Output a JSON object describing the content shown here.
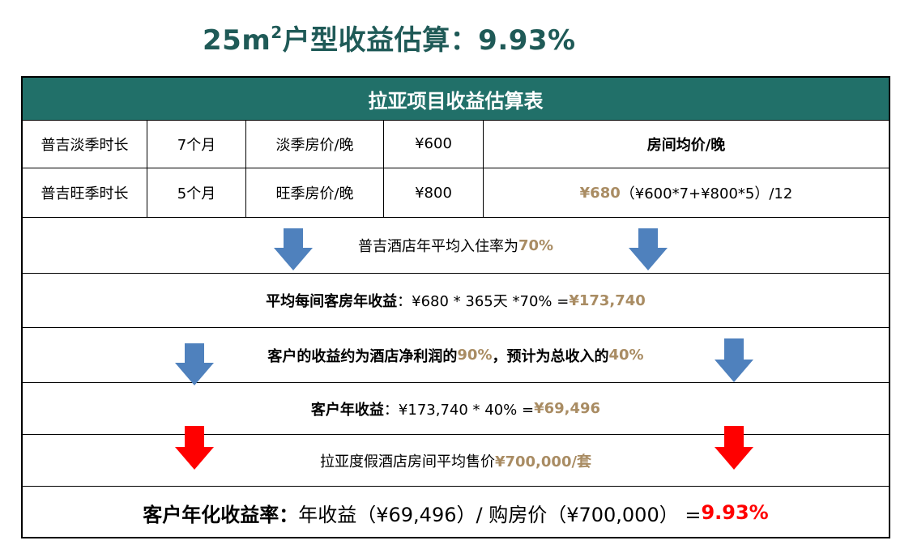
{
  "title": {
    "prefix": "25m",
    "sup": "2",
    "suffix": "户型收益估算：9.93%"
  },
  "table": {
    "header": "拉亚项目收益估算表",
    "row1": {
      "c1": "普吉淡季时长",
      "c2": "7个月",
      "c3": "淡季房价/晚",
      "c4": "¥600",
      "c5": "房间均价/晚"
    },
    "row2": {
      "c1": "普吉旺季时长",
      "c2": "5个月",
      "c3": "旺季房价/晚",
      "c4": "¥800",
      "c5_value": "¥680",
      "c5_formula": "（¥600*7+¥800*5）/12"
    },
    "row3": {
      "text": "普吉酒店年平均入住率为",
      "value": "70%"
    },
    "row4": {
      "label": "平均每间客房年收益",
      "formula": "：¥680 * 365天 *70% = ",
      "value": "¥173,740"
    },
    "row5": {
      "t1": "客户的收益约为酒店净利润的",
      "v1": "90%",
      "t2": "，预计为总收入的",
      "v2": "40%"
    },
    "row6": {
      "label": "客户年收益",
      "formula": "：¥173,740 * 40% = ",
      "value": "¥69,496"
    },
    "row7": {
      "text": "拉亚度假酒店房间平均售价",
      "value": "¥700,000/套"
    },
    "row8": {
      "label": "客户年化收益率：",
      "formula": "年收益（¥69,496）/ 购房价（¥700,000） = ",
      "value": "9.93%"
    }
  },
  "colors": {
    "header_bg": "#217069",
    "title": "#1f5a57",
    "gold": "#a98c63",
    "red": "#ff0000",
    "blue_arrow": "#4f81bd",
    "red_arrow": "#ff0000"
  }
}
